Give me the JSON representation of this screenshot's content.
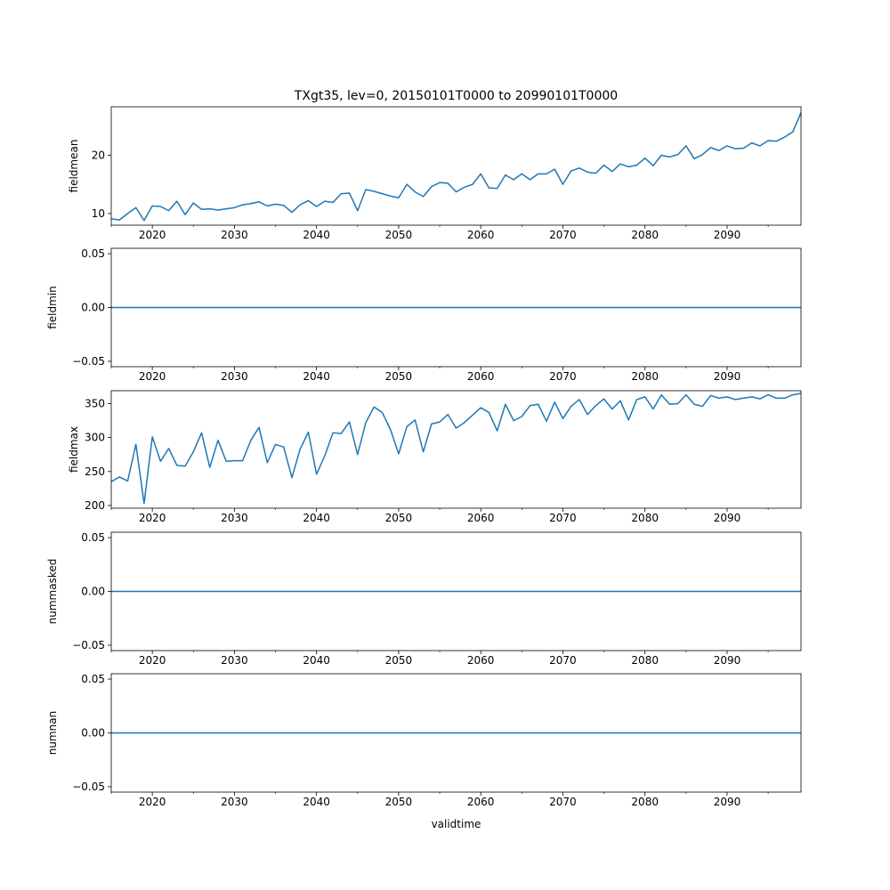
{
  "figure": {
    "title": "TXgt35, lev=0, 20150101T0000 to 20990101T0000",
    "xlabel": "validtime"
  },
  "colors": {
    "series": "#1f77b4",
    "axes": "#000000",
    "background": "#ffffff"
  },
  "chart_data": [
    {
      "type": "line",
      "name": "fieldmean",
      "ylabel": "fieldmean",
      "xlim": [
        2015,
        2099
      ],
      "ylim": [
        8.0,
        28.3
      ],
      "x_ticks": [
        2020,
        2030,
        2040,
        2050,
        2060,
        2070,
        2080,
        2090
      ],
      "y_ticks": [
        10,
        20
      ],
      "y_tick_labels": [
        "10",
        "20"
      ],
      "x": [
        2015,
        2016,
        2017,
        2018,
        2019,
        2020,
        2021,
        2022,
        2023,
        2024,
        2025,
        2026,
        2027,
        2028,
        2029,
        2030,
        2031,
        2032,
        2033,
        2034,
        2035,
        2036,
        2037,
        2038,
        2039,
        2040,
        2041,
        2042,
        2043,
        2044,
        2045,
        2046,
        2047,
        2048,
        2049,
        2050,
        2051,
        2052,
        2053,
        2054,
        2055,
        2056,
        2057,
        2058,
        2059,
        2060,
        2061,
        2062,
        2063,
        2064,
        2065,
        2066,
        2067,
        2068,
        2069,
        2070,
        2071,
        2072,
        2073,
        2074,
        2075,
        2076,
        2077,
        2078,
        2079,
        2080,
        2081,
        2082,
        2083,
        2084,
        2085,
        2086,
        2087,
        2088,
        2089,
        2090,
        2091,
        2092,
        2093,
        2094,
        2095,
        2096,
        2097,
        2098,
        2099
      ],
      "y": [
        9.1,
        8.9,
        10.0,
        11.0,
        8.8,
        11.3,
        11.2,
        10.5,
        12.1,
        9.8,
        11.8,
        10.7,
        10.8,
        10.6,
        10.8,
        11.0,
        11.5,
        11.7,
        12.0,
        11.3,
        11.6,
        11.4,
        10.2,
        11.5,
        12.2,
        11.2,
        12.1,
        11.9,
        13.4,
        13.5,
        10.5,
        14.1,
        13.8,
        13.4,
        13.0,
        12.7,
        15.0,
        13.7,
        12.9,
        14.6,
        15.3,
        15.2,
        13.7,
        14.5,
        15.0,
        16.8,
        14.4,
        14.3,
        16.6,
        15.8,
        16.8,
        15.8,
        16.8,
        16.8,
        17.6,
        15.0,
        17.3,
        17.8,
        17.1,
        16.9,
        18.3,
        17.2,
        18.5,
        18.0,
        18.3,
        19.5,
        18.2,
        20.0,
        19.7,
        20.1,
        21.6,
        19.4,
        20.1,
        21.3,
        20.8,
        21.6,
        21.1,
        21.2,
        22.1,
        21.6,
        22.5,
        22.4,
        23.1,
        24.0,
        27.3
      ]
    },
    {
      "type": "line",
      "name": "fieldmin",
      "ylabel": "fieldmin",
      "xlim": [
        2015,
        2099
      ],
      "ylim": [
        -0.055,
        0.055
      ],
      "x_ticks": [
        2020,
        2030,
        2040,
        2050,
        2060,
        2070,
        2080,
        2090
      ],
      "y_ticks": [
        -0.05,
        0.0,
        0.05
      ],
      "y_tick_labels": [
        "−0.05",
        "0.00",
        "0.05"
      ],
      "x": [
        2015,
        2099
      ],
      "y": [
        0,
        0
      ]
    },
    {
      "type": "line",
      "name": "fieldmax",
      "ylabel": "fieldmax",
      "xlim": [
        2015,
        2099
      ],
      "ylim": [
        196,
        369
      ],
      "x_ticks": [
        2020,
        2030,
        2040,
        2050,
        2060,
        2070,
        2080,
        2090
      ],
      "y_ticks": [
        200,
        250,
        300,
        350
      ],
      "y_tick_labels": [
        "200",
        "250",
        "300",
        "350"
      ],
      "x": [
        2015,
        2016,
        2017,
        2018,
        2019,
        2020,
        2021,
        2022,
        2023,
        2024,
        2025,
        2026,
        2027,
        2028,
        2029,
        2030,
        2031,
        2032,
        2033,
        2034,
        2035,
        2036,
        2037,
        2038,
        2039,
        2040,
        2041,
        2042,
        2043,
        2044,
        2045,
        2046,
        2047,
        2048,
        2049,
        2050,
        2051,
        2052,
        2053,
        2054,
        2055,
        2056,
        2057,
        2058,
        2059,
        2060,
        2061,
        2062,
        2063,
        2064,
        2065,
        2066,
        2067,
        2068,
        2069,
        2070,
        2071,
        2072,
        2073,
        2074,
        2075,
        2076,
        2077,
        2078,
        2079,
        2080,
        2081,
        2082,
        2083,
        2084,
        2085,
        2086,
        2087,
        2088,
        2089,
        2090,
        2091,
        2092,
        2093,
        2094,
        2095,
        2096,
        2097,
        2098,
        2099
      ],
      "y": [
        235,
        242,
        236,
        290,
        203,
        301,
        265,
        284,
        259,
        258,
        279,
        307,
        256,
        296,
        265,
        266,
        266,
        296,
        315,
        263,
        290,
        286,
        241,
        283,
        308,
        246,
        273,
        307,
        306,
        323,
        275,
        322,
        345,
        337,
        312,
        276,
        316,
        326,
        279,
        320,
        323,
        334,
        314,
        322,
        333,
        344,
        337,
        310,
        349,
        325,
        331,
        347,
        349,
        324,
        352,
        328,
        346,
        356,
        334,
        347,
        357,
        342,
        354,
        326,
        356,
        360,
        342,
        363,
        349,
        350,
        363,
        349,
        346,
        362,
        358,
        360,
        356,
        358,
        360,
        357,
        363,
        358,
        358,
        363,
        365
      ]
    },
    {
      "type": "line",
      "name": "nummasked",
      "ylabel": "nummasked",
      "xlim": [
        2015,
        2099
      ],
      "ylim": [
        -0.055,
        0.055
      ],
      "x_ticks": [
        2020,
        2030,
        2040,
        2050,
        2060,
        2070,
        2080,
        2090
      ],
      "y_ticks": [
        -0.05,
        0.0,
        0.05
      ],
      "y_tick_labels": [
        "−0.05",
        "0.00",
        "0.05"
      ],
      "x": [
        2015,
        2099
      ],
      "y": [
        0,
        0
      ]
    },
    {
      "type": "line",
      "name": "numnan",
      "ylabel": "numnan",
      "xlim": [
        2015,
        2099
      ],
      "ylim": [
        -0.055,
        0.055
      ],
      "x_ticks": [
        2020,
        2030,
        2040,
        2050,
        2060,
        2070,
        2080,
        2090
      ],
      "y_ticks": [
        -0.05,
        0.0,
        0.05
      ],
      "y_tick_labels": [
        "−0.05",
        "0.00",
        "0.05"
      ],
      "x": [
        2015,
        2099
      ],
      "y": [
        0,
        0
      ]
    }
  ]
}
